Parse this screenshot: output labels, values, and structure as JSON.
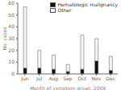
{
  "chart_data": {
    "type": "bar",
    "stacked": true,
    "categories": [
      "Jun",
      "Jul",
      "Aug",
      "Sep",
      "Oct",
      "Nov",
      "Dec"
    ],
    "series": [
      {
        "name": "Hematologic malignancy",
        "color": "#111111",
        "values": [
          5,
          5,
          4,
          2,
          4,
          11,
          3
        ]
      },
      {
        "name": "Other",
        "color": "#f5f5f5",
        "values": [
          52,
          15,
          12,
          6,
          29,
          19,
          12
        ]
      }
    ],
    "ylim": [
      0,
      60
    ],
    "yticks": [
      0,
      10,
      20,
      30,
      40,
      50,
      60
    ],
    "xlabel": "Month of symptom onset, 2009",
    "ylabel": "No. cases",
    "legend": "upper right",
    "grid": false
  }
}
